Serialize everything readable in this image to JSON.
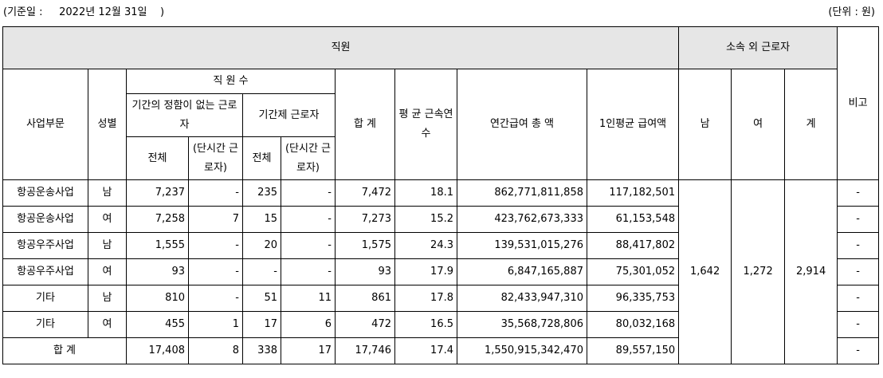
{
  "meta": {
    "base_date_label": "(기준일 :",
    "base_date_value": "2022년 12월 31일",
    "base_date_close": ")",
    "unit": "(단위 : 원)"
  },
  "headers": {
    "staff": "직원",
    "outside_workers": "소속 외 근로자",
    "note": "비고",
    "division": "사업부문",
    "gender": "성별",
    "staff_count": "직 원 수",
    "permanent": "기간의 정함이 없는 근로자",
    "fixed_term": "기간제 근로자",
    "total": "합 계",
    "avg_tenure": "평 균 근속연수",
    "annual_pay": "연간급여 총 액",
    "avg_pay": "1인평균 급여액",
    "male": "남",
    "female": "여",
    "sum": "계",
    "all": "전체",
    "part_time": "(단시간 근로자)"
  },
  "rows": [
    {
      "division": "항공운송사업",
      "gender": "남",
      "perm_total": "7,237",
      "perm_part": "-",
      "fixed_total": "235",
      "fixed_part": "-",
      "total": "7,472",
      "tenure": "18.1",
      "annual_pay": "862,771,811,858",
      "avg_pay": "117,182,501",
      "note": "-"
    },
    {
      "division": "항공운송사업",
      "gender": "여",
      "perm_total": "7,258",
      "perm_part": "7",
      "fixed_total": "15",
      "fixed_part": "-",
      "total": "7,273",
      "tenure": "15.2",
      "annual_pay": "423,762,673,333",
      "avg_pay": "61,153,548",
      "note": "-"
    },
    {
      "division": "항공우주사업",
      "gender": "남",
      "perm_total": "1,555",
      "perm_part": "-",
      "fixed_total": "20",
      "fixed_part": "-",
      "total": "1,575",
      "tenure": "24.3",
      "annual_pay": "139,531,015,276",
      "avg_pay": "88,417,802",
      "note": "-"
    },
    {
      "division": "항공우주사업",
      "gender": "여",
      "perm_total": "93",
      "perm_part": "-",
      "fixed_total": "-",
      "fixed_part": "-",
      "total": "93",
      "tenure": "17.9",
      "annual_pay": "6,847,165,887",
      "avg_pay": "75,301,052",
      "note": "-"
    },
    {
      "division": "기타",
      "gender": "남",
      "perm_total": "810",
      "perm_part": "-",
      "fixed_total": "51",
      "fixed_part": "11",
      "total": "861",
      "tenure": "17.8",
      "annual_pay": "82,433,947,310",
      "avg_pay": "96,335,753",
      "note": "-"
    },
    {
      "division": "기타",
      "gender": "여",
      "perm_total": "455",
      "perm_part": "1",
      "fixed_total": "17",
      "fixed_part": "6",
      "total": "472",
      "tenure": "16.5",
      "annual_pay": "35,568,728,806",
      "avg_pay": "80,032,168",
      "note": "-"
    }
  ],
  "total_row": {
    "label": "합 계",
    "perm_total": "17,408",
    "perm_part": "8",
    "fixed_total": "338",
    "fixed_part": "17",
    "total": "17,746",
    "tenure": "17.4",
    "annual_pay": "1,550,915,342,470",
    "avg_pay": "89,557,150",
    "note": "-"
  },
  "outside": {
    "male": "1,642",
    "female": "1,272",
    "sum": "2,914"
  }
}
